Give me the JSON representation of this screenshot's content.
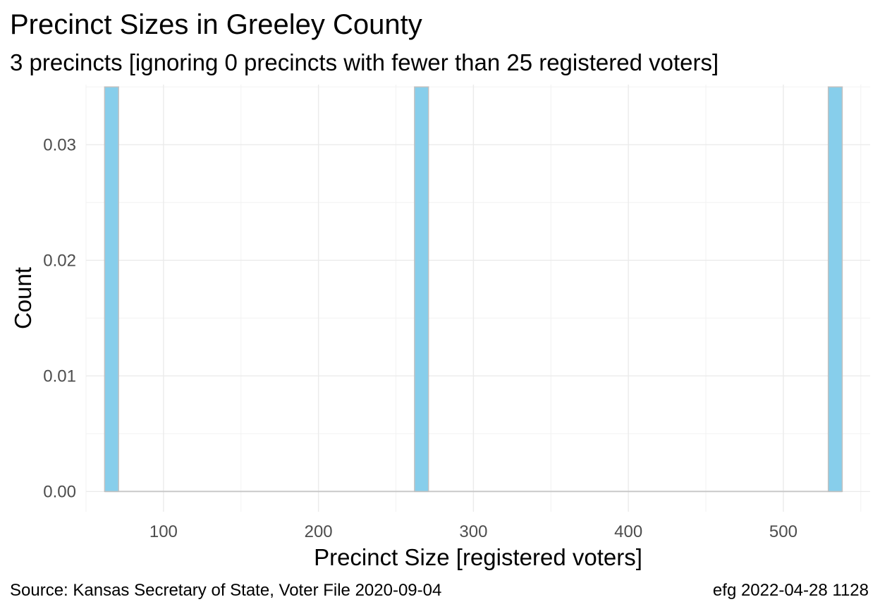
{
  "chart_data": {
    "type": "bar",
    "title": "Precinct Sizes in Greeley County",
    "subtitle": "3 precincts [ignoring 0 precincts with fewer than 25 registered voters]",
    "xlabel": "Precinct Size [registered voters]",
    "ylabel": "Count",
    "xlim": [
      50,
      556
    ],
    "ylim": [
      -0.00175,
      0.0352
    ],
    "x_ticks": [
      100,
      200,
      300,
      400,
      500
    ],
    "x_tick_labels": [
      "100",
      "200",
      "300",
      "400",
      "500"
    ],
    "y_ticks": [
      0,
      0.01,
      0.02,
      0.03
    ],
    "y_tick_labels": [
      "0.00",
      "0.01",
      "0.02",
      "0.03"
    ],
    "bins": [
      {
        "x_start": 62,
        "x_end": 71,
        "value": 0.035
      },
      {
        "x_start": 262,
        "x_end": 271,
        "value": 0.035
      },
      {
        "x_start": 529,
        "x_end": 538,
        "value": 0.035
      }
    ],
    "grid": true,
    "colors": {
      "bar_fill": "#87ceeb",
      "bar_outline": "#c0c0c0"
    }
  },
  "caption": {
    "left": "Source:  Kansas Secretary of State, Voter File  2020-09-04",
    "right": "efg 2022-04-28 1128"
  }
}
